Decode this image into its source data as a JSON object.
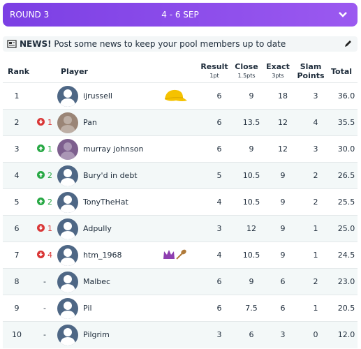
{
  "header": {
    "round": "ROUND 3",
    "dates": "4 - 6 SEP"
  },
  "news": {
    "label": "NEWS!",
    "text": "Post some news to keep your pool members up to date"
  },
  "table": {
    "columns": [
      {
        "label": "Rank"
      },
      {
        "label": "Player"
      },
      {
        "label": "Result",
        "sup": "1pt"
      },
      {
        "label": "Close",
        "sup": "1.5pts"
      },
      {
        "label": "Exact",
        "sup": "3pts"
      },
      {
        "label": "Slam Points"
      },
      {
        "label": "Total"
      }
    ],
    "rows": [
      {
        "rank": "1",
        "name": "ijrussell",
        "result": "6",
        "close": "9",
        "exact": "18",
        "slam": "3",
        "total": "36.0"
      },
      {
        "rank": "2",
        "move": "down",
        "change": "1",
        "name": "Pan",
        "result": "6",
        "close": "13.5",
        "exact": "12",
        "slam": "4",
        "total": "35.5"
      },
      {
        "rank": "3",
        "move": "up",
        "change": "1",
        "name": "murray johnson",
        "result": "6",
        "close": "9",
        "exact": "12",
        "slam": "3",
        "total": "30.0"
      },
      {
        "rank": "4",
        "move": "up",
        "change": "2",
        "name": "Bury'd in debt",
        "result": "5",
        "close": "10.5",
        "exact": "9",
        "slam": "2",
        "total": "26.5"
      },
      {
        "rank": "5",
        "move": "up",
        "change": "2",
        "name": "TonyTheHat",
        "result": "4",
        "close": "10.5",
        "exact": "9",
        "slam": "2",
        "total": "25.5"
      },
      {
        "rank": "6",
        "move": "down",
        "change": "1",
        "name": "Adpully",
        "result": "3",
        "close": "12",
        "exact": "9",
        "slam": "1",
        "total": "25.0"
      },
      {
        "rank": "7",
        "move": "down",
        "change": "4",
        "name": "htm_1968",
        "result": "4",
        "close": "10.5",
        "exact": "9",
        "slam": "1",
        "total": "24.5"
      },
      {
        "rank": "8",
        "change": "-",
        "name": "Malbec",
        "result": "6",
        "close": "9",
        "exact": "6",
        "slam": "2",
        "total": "23.0"
      },
      {
        "rank": "9",
        "change": "-",
        "name": "Pil",
        "result": "6",
        "close": "7.5",
        "exact": "6",
        "slam": "1",
        "total": "20.5"
      },
      {
        "rank": "10",
        "change": "-",
        "name": "Pilgrim",
        "result": "3",
        "close": "6",
        "exact": "3",
        "slam": "0",
        "total": "12.0"
      }
    ]
  }
}
